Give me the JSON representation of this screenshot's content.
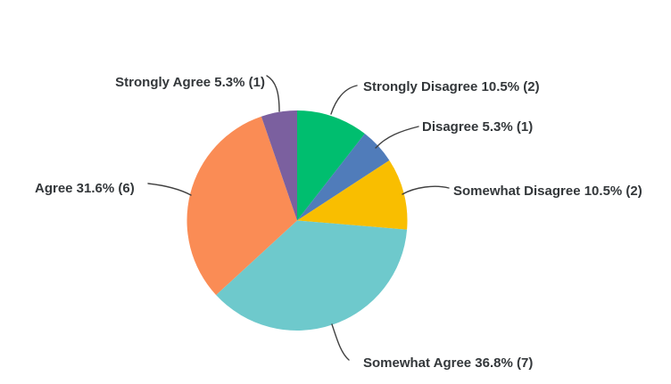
{
  "chart_data": {
    "type": "pie",
    "title": "",
    "legend": "none",
    "label_style": "callout-with-leader-lines",
    "start_angle_deg": 0,
    "direction": "clockwise-from-top",
    "total_responses": 19,
    "slices": [
      {
        "label": "Strongly Disagree",
        "percent": 10.5,
        "count": 2,
        "display": "Strongly Disagree 10.5% (2)",
        "color": "#00be6f"
      },
      {
        "label": "Disagree",
        "percent": 5.3,
        "count": 1,
        "display": "Disagree 5.3% (1)",
        "color": "#507cba"
      },
      {
        "label": "Somewhat Disagree",
        "percent": 10.5,
        "count": 2,
        "display": "Somewhat Disagree 10.5% (2)",
        "color": "#f9be00"
      },
      {
        "label": "Somewhat Agree",
        "percent": 36.8,
        "count": 7,
        "display": "Somewhat Agree 36.8% (7)",
        "color": "#6ec9cc"
      },
      {
        "label": "Agree",
        "percent": 31.6,
        "count": 6,
        "display": "Agree 31.6% (6)",
        "color": "#fa8c55"
      },
      {
        "label": "Strongly Agree",
        "percent": 5.3,
        "count": 1,
        "display": "Strongly Agree 5.3% (1)",
        "color": "#7b609f"
      }
    ],
    "colors": {
      "text": "#33373a",
      "leader_line": "#404040",
      "background": "#ffffff"
    }
  }
}
